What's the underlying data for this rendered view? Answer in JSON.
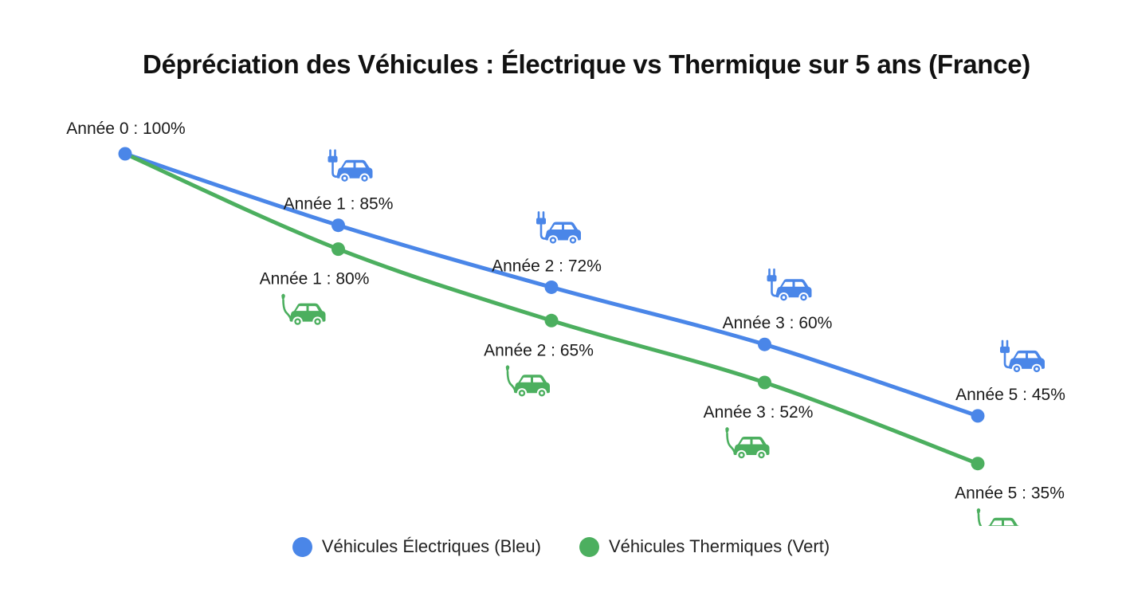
{
  "chart_data": {
    "type": "line",
    "title": "Dépréciation des Véhicules : Électrique vs Thermique sur 5 ans (France)",
    "series": [
      {
        "name": "Véhicules Électriques (Bleu)",
        "color": "#4a86e8",
        "icon": "electric-car-icon",
        "points": [
          {
            "year": 0,
            "value": 100,
            "label": ""
          },
          {
            "year": 1,
            "value": 85,
            "label": "Année 1 : 85%"
          },
          {
            "year": 2,
            "value": 72,
            "label": "Année 2 : 72%"
          },
          {
            "year": 3,
            "value": 60,
            "label": "Année 3 : 60%"
          },
          {
            "year": 5,
            "value": 45,
            "label": "Année 5 : 45%"
          }
        ]
      },
      {
        "name": "Véhicules Thermiques (Vert)",
        "color": "#4caf5f",
        "icon": "fuel-car-icon",
        "points": [
          {
            "year": 0,
            "value": 100,
            "label": ""
          },
          {
            "year": 1,
            "value": 80,
            "label": "Année 1 : 80%"
          },
          {
            "year": 2,
            "value": 65,
            "label": "Année 2 : 65%"
          },
          {
            "year": 3,
            "value": 52,
            "label": "Année 3 : 52%"
          },
          {
            "year": 5,
            "value": 35,
            "label": "Année 5 : 35%"
          }
        ]
      }
    ],
    "shared_start_label": "Année 0 : 100%",
    "grid": false,
    "legend_position": "bottom-center"
  }
}
